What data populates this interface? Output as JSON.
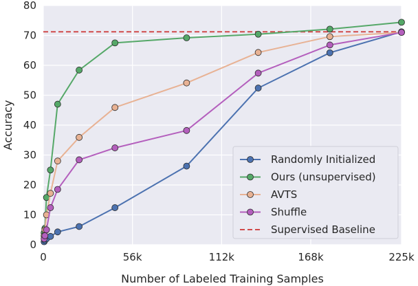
{
  "chart_data": {
    "type": "line",
    "title": "",
    "xlabel": "Number of Labeled Training Samples",
    "ylabel": "Accuracy",
    "xlim": [
      0,
      225000
    ],
    "ylim": [
      0,
      80
    ],
    "xticks": [
      0,
      56000,
      112000,
      168000,
      225000
    ],
    "xtick_labels": [
      "0",
      "56k",
      "112k",
      "168k",
      "225k"
    ],
    "yticks": [
      0,
      10,
      20,
      30,
      40,
      50,
      60,
      70,
      80
    ],
    "ytick_labels": [
      "0",
      "10",
      "20",
      "30",
      "40",
      "50",
      "60",
      "70",
      "80"
    ],
    "grid": true,
    "legend_position": "lower-right",
    "series": [
      {
        "name": "Randomly Initialized",
        "color": "#4c72b0",
        "points": [
          [
            500,
            1.0
          ],
          [
            1000,
            1.5
          ],
          [
            2000,
            2.0
          ],
          [
            4500,
            2.8
          ],
          [
            9000,
            4.3
          ],
          [
            22500,
            6.1
          ],
          [
            45000,
            12.4
          ],
          [
            90000,
            26.3
          ],
          [
            135000,
            52.4
          ],
          [
            180000,
            64.2
          ],
          [
            225000,
            71.2
          ]
        ]
      },
      {
        "name": "Ours (unsupervised)",
        "color": "#55a868",
        "points": [
          [
            500,
            4.0
          ],
          [
            1000,
            5.5
          ],
          [
            2000,
            15.8
          ],
          [
            4500,
            25.0
          ],
          [
            9000,
            47.0
          ],
          [
            22500,
            58.4
          ],
          [
            45000,
            67.5
          ],
          [
            90000,
            69.2
          ],
          [
            135000,
            70.4
          ],
          [
            180000,
            72.1
          ],
          [
            225000,
            74.4
          ]
        ]
      },
      {
        "name": "AVTS",
        "color": "#e8b294",
        "points": [
          [
            500,
            3.0
          ],
          [
            1000,
            5.0
          ],
          [
            2000,
            10.0
          ],
          [
            4500,
            17.2
          ],
          [
            9000,
            28.0
          ],
          [
            22500,
            35.9
          ],
          [
            45000,
            45.9
          ],
          [
            90000,
            54.1
          ],
          [
            135000,
            64.3
          ],
          [
            180000,
            69.6
          ],
          [
            225000,
            71.0
          ]
        ]
      },
      {
        "name": "Shuffle",
        "color": "#b45fbd",
        "points": [
          [
            500,
            2.0
          ],
          [
            1000,
            3.0
          ],
          [
            2000,
            5.0
          ],
          [
            4500,
            12.4
          ],
          [
            9000,
            18.5
          ],
          [
            22500,
            28.4
          ],
          [
            45000,
            32.4
          ],
          [
            90000,
            38.2
          ],
          [
            135000,
            57.4
          ],
          [
            180000,
            66.8
          ],
          [
            225000,
            71.0
          ]
        ]
      }
    ],
    "baseline": {
      "name": "Supervised Baseline",
      "color": "#d04a4a",
      "value": 71.2
    }
  }
}
